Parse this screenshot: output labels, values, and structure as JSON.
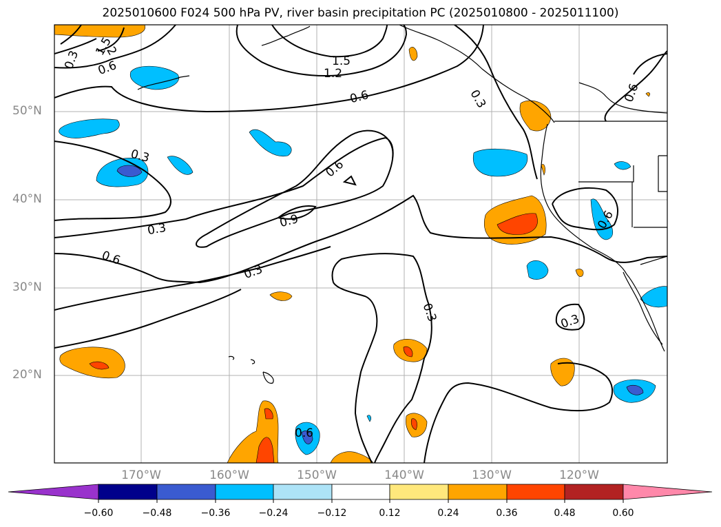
{
  "title": "2025010600 F024 500 hPa PV, river basin precipitation PC (2025010800 - 2025011100)",
  "lat_labels": [
    "50°N",
    "40°N",
    "30°N",
    "20°N"
  ],
  "lon_labels": [
    "170°W",
    "160°W",
    "150°W",
    "140°W",
    "130°W",
    "120°W"
  ],
  "colorbar": {
    "ticks": [
      "−0.60",
      "−0.48",
      "−0.36",
      "−0.24",
      "−0.12",
      "0.12",
      "0.24",
      "0.36",
      "0.48",
      "0.60"
    ],
    "colors": [
      "#9932cc",
      "#00008b",
      "#3a5bd0",
      "#00bfff",
      "#ade3f7",
      "#ffffff",
      "#ffe87c",
      "#ffa500",
      "#ff4500",
      "#b22222",
      "#ff88aa"
    ]
  },
  "contour_labels": [
    "1.5",
    "1.2",
    "0.6",
    "0.3",
    "0.6",
    "0.3",
    "0.6",
    "0.9",
    "0.3",
    "0.6",
    "0.3",
    "0.3",
    "0.3",
    "0.6",
    "0.6",
    "0.3",
    "1.5",
    "2",
    "0.6"
  ]
}
